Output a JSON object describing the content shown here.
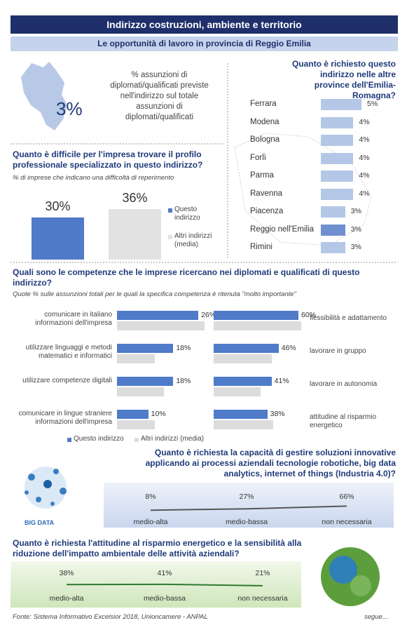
{
  "header": {
    "title": "Indirizzo costruzioni, ambiente e territorio",
    "subtitle": "Le opportunità di lavoro in provincia di Reggio Emilia"
  },
  "share": {
    "value": 3,
    "value_label": "3%",
    "text": "% assunzioni di diplomati/qualificati previste nell'indirizzo sul totale assunzioni di diplomati/qualificati"
  },
  "provinces": {
    "title": "Quanto è richiesto questo indirizzo nelle altre province dell'Emilia-Romagna?",
    "categories": [
      "Ferrara",
      "Modena",
      "Bologna",
      "Forlì",
      "Parma",
      "Ravenna",
      "Piacenza",
      "Reggio nell'Emilia",
      "Rimini"
    ],
    "values": [
      5,
      4,
      4,
      4,
      4,
      4,
      3,
      3,
      3
    ],
    "value_labels": [
      "5%",
      "4%",
      "4%",
      "4%",
      "4%",
      "4%",
      "3%",
      "3%",
      "3%"
    ],
    "colors": [
      "#b4c7e7",
      "#b4c7e7",
      "#b4c7e7",
      "#b4c7e7",
      "#b4c7e7",
      "#b4c7e7",
      "#b4c7e7",
      "#6f8fd0",
      "#b4c7e7"
    ]
  },
  "difficulty": {
    "title": "Quanto è difficile per l'impresa trovare il profilo professionale specializzato in questo indirizzo?",
    "subtitle": "% di imprese che indicano una difficoltà di reperimento",
    "series": [
      {
        "name": "Questo indirizzo",
        "color": "#4f7bc9",
        "value": 30,
        "value_label": "30%"
      },
      {
        "name": "Altri indirizzi (media)",
        "color": "#e2e2e2",
        "value": 36,
        "value_label": "36%"
      }
    ]
  },
  "competences": {
    "title": "Quali sono le competenze che le imprese ricercano nei diplomati e qualificati di questo indirizzo?",
    "subtitle": "Quote % sulle assunzioni totali per le quali la specifica competenza è ritenuta \"molto importante\"",
    "legend": [
      {
        "name": "Questo indirizzo",
        "color": "#4f7bc9"
      },
      {
        "name": "Altri indirizzi (media)",
        "color": "#dcdcdc"
      }
    ],
    "left": {
      "categories": [
        "comunicare in italiano informazioni dell'impresa",
        "utilizzare linguaggi e metodi matematici e informatici",
        "utilizzare competenze digitali",
        "comunicare in lingue straniere informazioni dell'impresa"
      ],
      "questo": [
        26,
        18,
        18,
        10
      ],
      "questo_labels": [
        "26%",
        "18%",
        "18%",
        "10%"
      ],
      "altri": [
        28,
        12,
        15,
        12
      ]
    },
    "right": {
      "categories": [
        "flessibilità e adattamento",
        "lavorare in gruppo",
        "lavorare in autonomia",
        "attitudine al risparmio energetico"
      ],
      "questo": [
        60,
        46,
        41,
        38
      ],
      "questo_labels": [
        "60%",
        "46%",
        "41%",
        "38%"
      ],
      "altri": [
        62,
        41,
        33,
        42
      ]
    }
  },
  "innovation": {
    "title": "Quanto è richiesta la capacità di gestire soluzioni innovative applicando ai processi aziendali tecnologie robotiche, big data analytics, internet of things (Industria 4.0)?",
    "image_label": "BIG DATA",
    "categories": [
      "medio-alta",
      "medio-bassa",
      "non necessaria"
    ],
    "values": [
      8,
      27,
      66
    ],
    "value_labels": [
      "8%",
      "27%",
      "66%"
    ]
  },
  "energy": {
    "title": "Quanto è richiesta l'attitudine al risparmio energetico e la sensibilità alla riduzione dell'impatto ambientale delle attività aziendali?",
    "categories": [
      "medio-alta",
      "medio-bassa",
      "non necessaria"
    ],
    "values": [
      38,
      41,
      21
    ],
    "value_labels": [
      "38%",
      "41%",
      "21%"
    ]
  },
  "footer": {
    "source": "Fonte: Sistema Informativo Excelsior 2018, Unioncamere - ANPAL",
    "next": "segue..."
  }
}
